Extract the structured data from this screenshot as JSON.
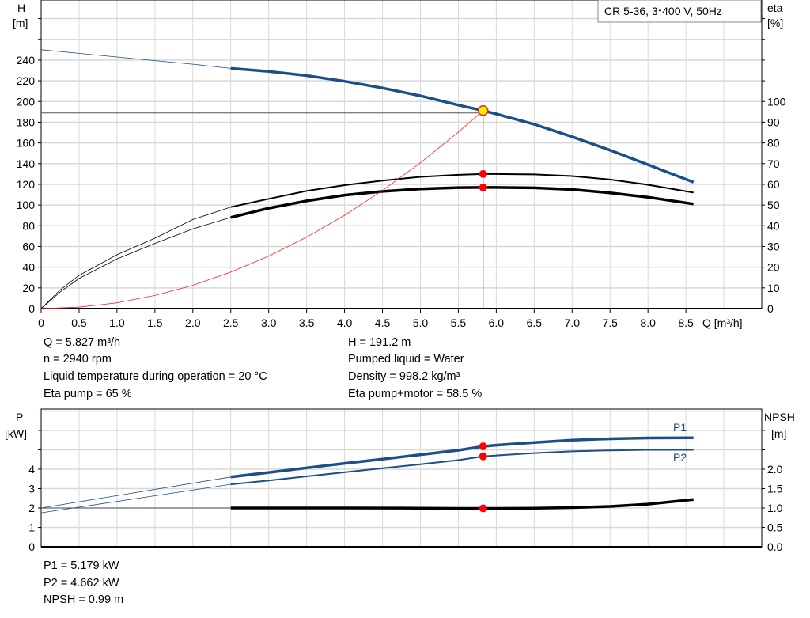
{
  "chart_data": [
    {
      "type": "line",
      "legend_box": "CR 5-36, 3*400 V, 50Hz",
      "xlabel": "Q [m³/h]",
      "ylabel_left": [
        "H",
        "[m]"
      ],
      "ylabel_right": [
        "eta",
        "[%]"
      ],
      "xlim": [
        0,
        9.5
      ],
      "ylim_left": [
        0,
        298
      ],
      "ylim_right": [
        0,
        149
      ],
      "grid": true,
      "x_ticks": [
        "0",
        "0.5",
        "1.0",
        "1.5",
        "2.0",
        "2.5",
        "3.0",
        "3.5",
        "4.0",
        "4.5",
        "5.0",
        "5.5",
        "6.0",
        "6.5",
        "7.0",
        "7.5",
        "8.0",
        "8.5"
      ],
      "y_left_ticks": [
        0,
        20,
        40,
        60,
        80,
        100,
        120,
        140,
        160,
        180,
        200,
        220,
        240
      ],
      "y_right_ticks": [
        0,
        10,
        20,
        30,
        40,
        50,
        60,
        70,
        80,
        90,
        100
      ],
      "series": [
        {
          "id": "H",
          "axis": "left",
          "color": "#1a4f8a",
          "x": [
            0,
            0.5,
            1,
            1.5,
            2,
            2.5,
            3,
            3.5,
            4,
            4.5,
            5,
            5.5,
            5.827,
            6,
            6.5,
            7,
            7.5,
            8,
            8.6
          ],
          "y": [
            250,
            246.5,
            243,
            239.5,
            236,
            232,
            229,
            225,
            219.5,
            213,
            205.5,
            196.5,
            191.2,
            188,
            178,
            166,
            153,
            139,
            122
          ]
        },
        {
          "id": "eta_pump",
          "axis": "right",
          "color": "#000000",
          "x": [
            0,
            0.25,
            0.5,
            1,
            1.5,
            2,
            2.5,
            3,
            3.5,
            4,
            4.5,
            5,
            5.5,
            5.827,
            6,
            6.5,
            7,
            7.5,
            8,
            8.6
          ],
          "y": [
            0,
            9,
            16,
            26,
            34,
            43,
            49,
            53,
            56.8,
            59.6,
            61.8,
            63.6,
            64.6,
            65,
            65,
            64.8,
            64,
            62.3,
            59.8,
            56
          ]
        },
        {
          "id": "eta_pump_motor",
          "axis": "right",
          "color": "#000000",
          "x": [
            0,
            0.25,
            0.5,
            1,
            1.5,
            2,
            2.5,
            3,
            3.5,
            4,
            4.5,
            5,
            5.5,
            5.827,
            6,
            6.5,
            7,
            7.5,
            8,
            8.6
          ],
          "y": [
            0,
            8,
            14.5,
            24,
            31.5,
            38.5,
            44,
            48.5,
            52,
            54.8,
            56.6,
            57.8,
            58.4,
            58.5,
            58.5,
            58.3,
            57.5,
            55.9,
            53.8,
            50.5
          ]
        },
        {
          "id": "system",
          "axis": "left",
          "color": "#ff2020",
          "x": [
            0,
            0.5,
            1,
            1.5,
            2,
            2.5,
            3,
            3.5,
            4,
            4.5,
            5,
            5.5,
            5.827
          ],
          "y": [
            0,
            1.4,
            5.6,
            12.7,
            22.5,
            35.2,
            50.7,
            69,
            90.1,
            114,
            140.8,
            170.3,
            191.2
          ]
        }
      ],
      "operating_point": {
        "Q": 5.827,
        "H": 191.2,
        "eta_pump": 65,
        "eta_pump_motor": 58.5
      }
    },
    {
      "type": "line",
      "ylabel_left": [
        "P",
        "[kW]"
      ],
      "ylabel_right": [
        "NPSH",
        "[m]"
      ],
      "xlim": [
        0,
        9.5
      ],
      "ylim_left": [
        0,
        7.1
      ],
      "ylim_right": [
        0,
        3.55
      ],
      "grid": true,
      "y_left_ticks": [
        "0",
        "1",
        "2",
        "3",
        "4"
      ],
      "y_right_ticks": [
        "0.0",
        "0.5",
        "1.0",
        "1.5",
        "2.0"
      ],
      "series": [
        {
          "id": "P1",
          "name": "P1",
          "axis": "left",
          "color": "#1a4f8a",
          "x": [
            0,
            2.5,
            3,
            3.5,
            4,
            4.5,
            5,
            5.5,
            5.827,
            6,
            6.5,
            7,
            7.5,
            8,
            8.6
          ],
          "y": [
            2.0,
            3.6,
            3.83,
            4.07,
            4.3,
            4.52,
            4.75,
            4.98,
            5.179,
            5.24,
            5.38,
            5.5,
            5.57,
            5.61,
            5.62
          ]
        },
        {
          "id": "P2",
          "name": "P2",
          "axis": "left",
          "color": "#1a4f8a",
          "x": [
            0,
            2.5,
            3,
            3.5,
            4,
            4.5,
            5,
            5.5,
            5.827,
            6,
            6.5,
            7,
            7.5,
            8,
            8.6
          ],
          "y": [
            1.75,
            3.22,
            3.42,
            3.63,
            3.84,
            4.05,
            4.25,
            4.47,
            4.662,
            4.71,
            4.83,
            4.92,
            4.97,
            5.0,
            5.0
          ]
        },
        {
          "id": "NPSH",
          "axis": "right",
          "color": "#000000",
          "x": [
            0,
            2.5,
            3,
            4,
            5,
            5.5,
            5.827,
            6,
            6.5,
            7,
            7.5,
            8,
            8.6
          ],
          "y": [
            1.0,
            1.0,
            1.0,
            1.0,
            0.995,
            0.99,
            0.99,
            0.99,
            0.995,
            1.01,
            1.04,
            1.1,
            1.22
          ]
        }
      ],
      "operating_point": {
        "Q": 5.827,
        "P1": 5.179,
        "P2": 4.662,
        "NPSH": 0.99
      }
    }
  ],
  "info_top": {
    "left": [
      "Q = 5.827 m³/h",
      "n = 2940 rpm",
      "Liquid temperature during operation = 20 °C",
      "Eta pump = 65 %"
    ],
    "right": [
      "H = 191.2 m",
      "Pumped liquid = Water",
      "Density = 998.2 kg/m³",
      "Eta pump+motor = 58.5 %"
    ]
  },
  "info_bottom": [
    "P1 = 5.179 kW",
    "P2 = 4.662 kW",
    "NPSH = 0.99 m"
  ]
}
